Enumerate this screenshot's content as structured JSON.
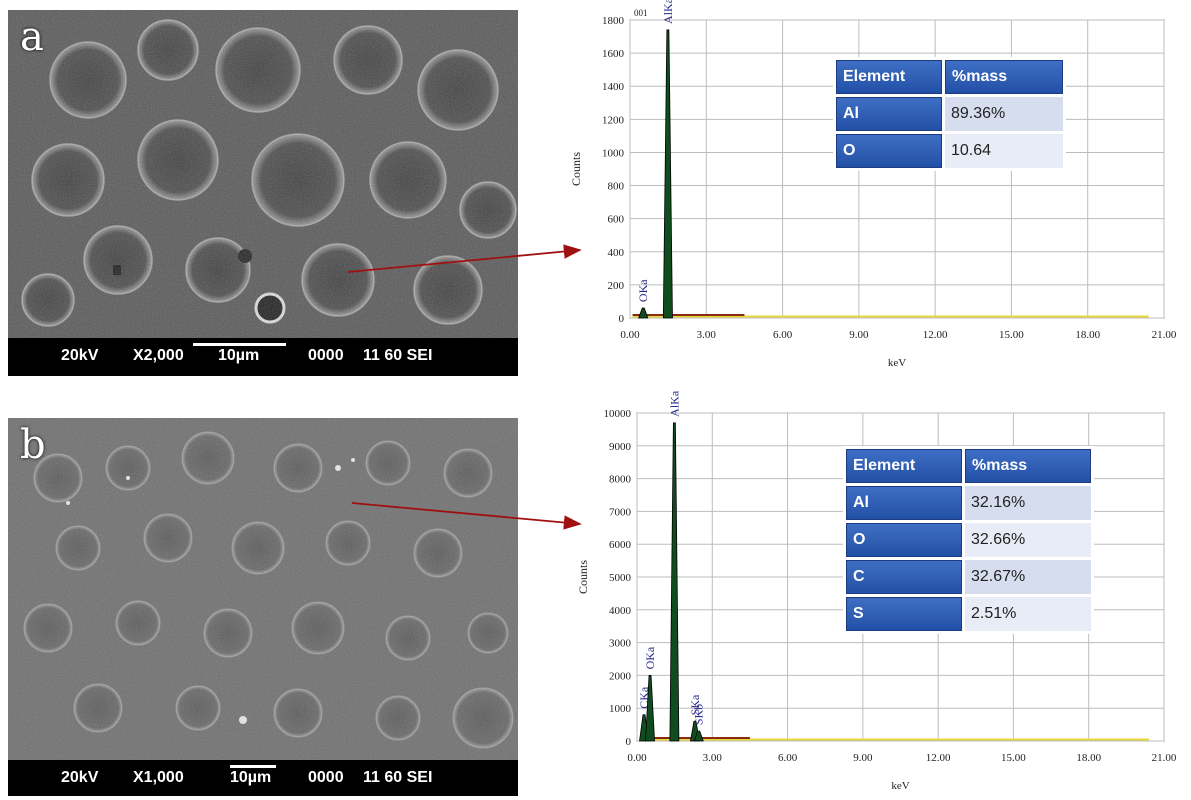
{
  "panels": [
    {
      "letter": "a",
      "sem_footer": {
        "voltage": "20kV",
        "magnification": "X2,000",
        "scale": "10µm",
        "code": "0000",
        "session": "11 60 SEI"
      },
      "table": {
        "headers": [
          "Element",
          "%mass"
        ],
        "rows": [
          [
            "Al",
            "89.36%"
          ],
          [
            "O",
            "10.64"
          ]
        ]
      },
      "chart_data": {
        "type": "line",
        "corner_label": "001",
        "xlabel": "keV",
        "ylabel": "Counts",
        "xlim": [
          0,
          21
        ],
        "ylim": [
          0,
          1800
        ],
        "x_ticks": [
          "0.00",
          "3.00",
          "6.00",
          "9.00",
          "12.00",
          "15.00",
          "18.00",
          "21.00"
        ],
        "y_ticks": [
          "0",
          "200",
          "400",
          "600",
          "800",
          "1000",
          "1200",
          "1400",
          "1600",
          "1800"
        ],
        "peaks": [
          {
            "label": "OKa",
            "x": 0.52,
            "y": 60
          },
          {
            "label": "AlKa",
            "x": 1.49,
            "y": 1740
          }
        ],
        "grid": true
      }
    },
    {
      "letter": "b",
      "sem_footer": {
        "voltage": "20kV",
        "magnification": "X1,000",
        "scale": "10µm",
        "code": "0000",
        "session": "11 60 SEI"
      },
      "table": {
        "headers": [
          "Element",
          "%mass"
        ],
        "rows": [
          [
            "Al",
            "32.16%"
          ],
          [
            "O",
            "32.66%"
          ],
          [
            "C",
            "32.67%"
          ],
          [
            "S",
            "2.51%"
          ]
        ]
      },
      "chart_data": {
        "type": "line",
        "xlabel": "keV",
        "ylabel": "Counts",
        "xlim": [
          0,
          21
        ],
        "ylim": [
          0,
          10000
        ],
        "x_ticks": [
          "0.00",
          "3.00",
          "6.00",
          "9.00",
          "12.00",
          "15.00",
          "18.00",
          "21.00"
        ],
        "y_ticks": [
          "0",
          "1000",
          "2000",
          "3000",
          "4000",
          "5000",
          "6000",
          "7000",
          "8000",
          "9000",
          "10000"
        ],
        "peaks": [
          {
            "label": "CKa",
            "x": 0.28,
            "y": 800
          },
          {
            "label": "OKa",
            "x": 0.52,
            "y": 2000
          },
          {
            "label": "AlKa",
            "x": 1.49,
            "y": 9700
          },
          {
            "label": "SKa",
            "x": 2.31,
            "y": 600
          },
          {
            "label": "SKb",
            "x": 2.46,
            "y": 300
          }
        ],
        "grid": true
      }
    }
  ],
  "colors": {
    "spectrum_fill": "#0f4d1f",
    "baseline": "#e6d83a",
    "arrow": "#a01010",
    "peak_label": "#2a2a8a",
    "table_header": "#2d5cb3"
  }
}
